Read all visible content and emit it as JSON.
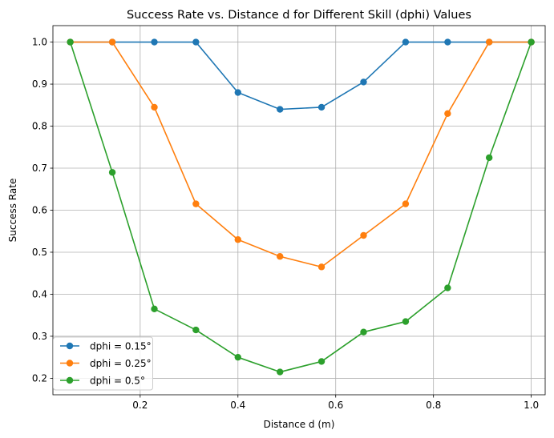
{
  "chart_data": {
    "type": "line",
    "title": "Success Rate vs. Distance d for Different Skill (dphi) Values",
    "xlabel": "Distance d (m)",
    "ylabel": "Success Rate",
    "xlim": [
      0.0215,
      1.0285
    ],
    "ylim": [
      0.1608,
      1.0392
    ],
    "xticks": [
      0.2,
      0.4,
      0.6,
      0.8,
      1.0
    ],
    "xtick_labels": [
      "0.2",
      "0.4",
      "0.6",
      "0.8",
      "1.0"
    ],
    "yticks": [
      0.2,
      0.3,
      0.4,
      0.5,
      0.6,
      0.7,
      0.8,
      0.9,
      1.0
    ],
    "ytick_labels": [
      "0.2",
      "0.3",
      "0.4",
      "0.5",
      "0.6",
      "0.7",
      "0.8",
      "0.9",
      "1.0"
    ],
    "grid": true,
    "legend_position": "bottom-left",
    "x": [
      0.057,
      0.143,
      0.229,
      0.314,
      0.4,
      0.486,
      0.571,
      0.657,
      0.743,
      0.829,
      0.914,
      1.0
    ],
    "series": [
      {
        "name": "dphi = 0.15°",
        "color": "#1f77b4",
        "values": [
          1.0,
          1.0,
          1.0,
          1.0,
          0.88,
          0.84,
          0.845,
          0.905,
          1.0,
          1.0,
          1.0,
          1.0
        ]
      },
      {
        "name": "dphi = 0.25°",
        "color": "#ff7f0e",
        "values": [
          1.0,
          1.0,
          0.845,
          0.615,
          0.53,
          0.49,
          0.465,
          0.54,
          0.615,
          0.83,
          1.0,
          1.0
        ]
      },
      {
        "name": "dphi = 0.5°",
        "color": "#2ca02c",
        "values": [
          1.0,
          0.69,
          0.365,
          0.315,
          0.25,
          0.215,
          0.24,
          0.31,
          0.335,
          0.415,
          0.725,
          1.0
        ]
      }
    ]
  }
}
